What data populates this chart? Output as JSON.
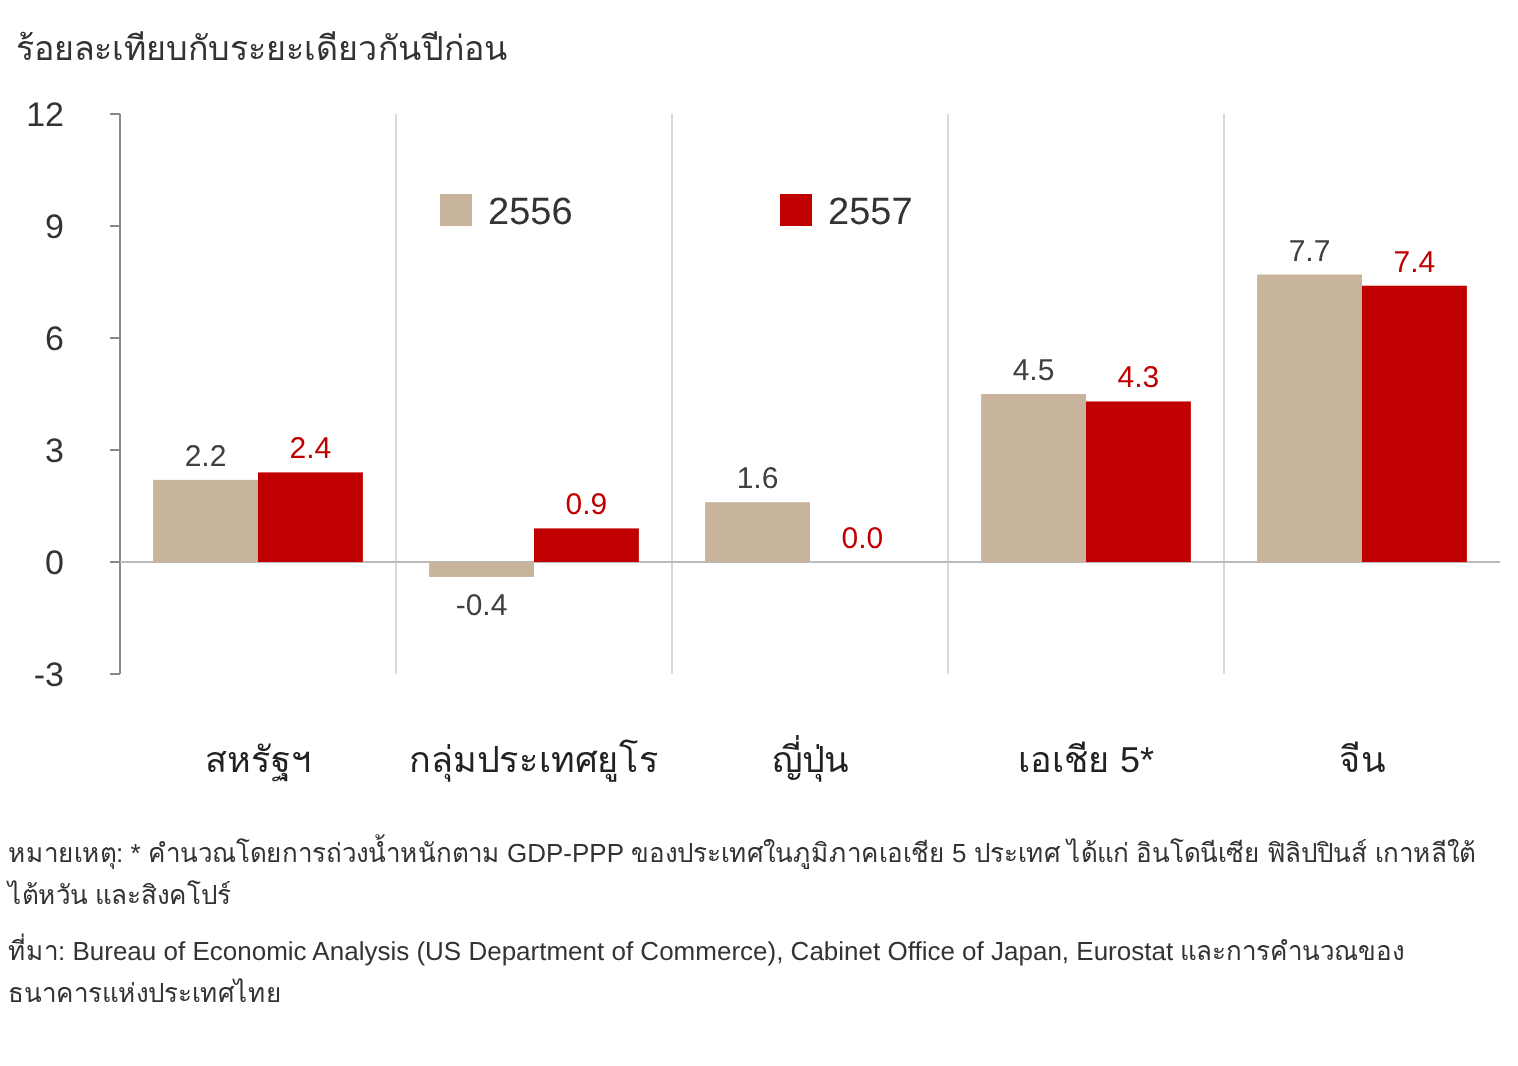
{
  "chart_data": {
    "type": "bar",
    "ylabel": "ร้อยละเทียบกับระยะเดียวกันปีก่อน",
    "categories": [
      "สหรัฐฯ",
      "กลุ่มประเทศยูโร",
      "ญี่ปุ่น",
      "เอเชีย 5*",
      "จีน"
    ],
    "series": [
      {
        "name": "2556",
        "color": "#c8b49c",
        "values": [
          2.2,
          -0.4,
          1.6,
          4.5,
          7.7
        ],
        "value_labels": [
          "2.2",
          "-0.4",
          "1.6",
          "4.5",
          "7.7"
        ]
      },
      {
        "name": "2557",
        "color": "#c00000",
        "values": [
          2.4,
          0.9,
          0.0,
          4.3,
          7.4
        ],
        "value_labels": [
          "2.4",
          "0.9",
          "0.0",
          "4.3",
          "7.4"
        ]
      }
    ],
    "ylim": [
      -3,
      12
    ],
    "yticks": [
      -3,
      0,
      3,
      6,
      9,
      12
    ],
    "grid": "x",
    "legend": "top",
    "annotations": [
      "หมายเหตุ: * คำนวณโดยการถ่วงน้ำหนักตาม GDP-PPP ของประเทศในภูมิภาคเอเชีย 5 ประเทศ ได้แก่ อินโดนีเซีย ฟิลิปปินส์ เกาหลีใต้ ไต้หวัน และสิงคโปร์",
      "ที่มา: Bureau of Economic Analysis (US Department of Commerce), Cabinet Office of Japan, Eurostat และการคำนวณของธนาคารแห่งประเทศไทย"
    ]
  }
}
